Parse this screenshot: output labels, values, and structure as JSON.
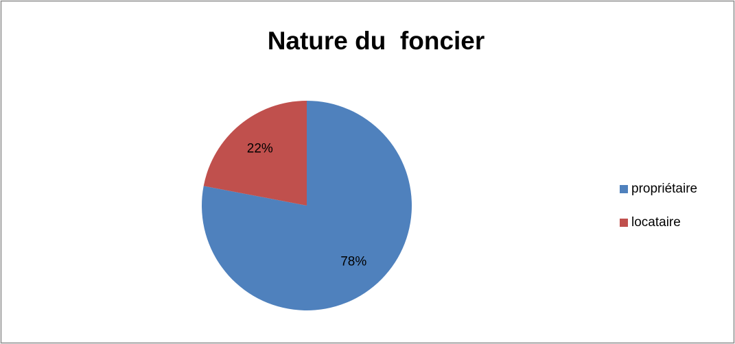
{
  "chart_data": {
    "type": "pie",
    "title": "Nature du  foncier",
    "categories": [
      "propriétaire",
      "locataire"
    ],
    "values": [
      78,
      22
    ],
    "value_labels": [
      "78%",
      "22%"
    ],
    "colors": [
      "#4f81bd",
      "#c0504d"
    ],
    "legend": "right"
  }
}
